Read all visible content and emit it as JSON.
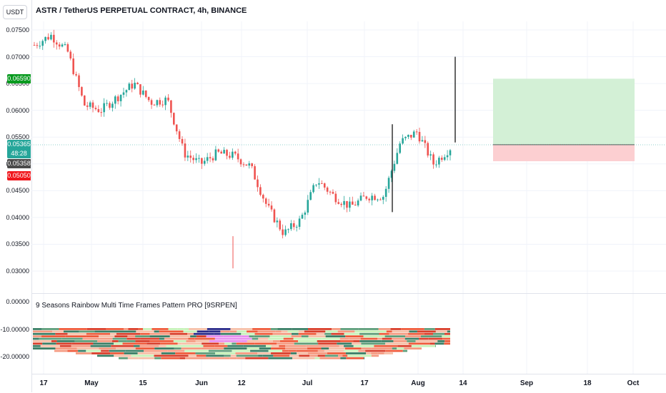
{
  "header": {
    "currency": "USDT",
    "title": "ASTR / TetherUS PERPETUAL CONTRACT, 4h, BINANCE"
  },
  "price_axis": {
    "ticks": [
      "0.07500",
      "0.07000",
      "0.06500",
      "0.06000",
      "0.05500",
      "0.05000",
      "0.04500",
      "0.04000",
      "0.03500",
      "0.03000"
    ],
    "labels": {
      "take_profit": "0.06590",
      "current": "0.05365",
      "countdown": "48:28",
      "entry": "0.05358",
      "stop_loss": "0.05050"
    },
    "colors": {
      "take_profit": "#089a1f",
      "current": "#26a69a",
      "entry": "#4a4a4a",
      "stop_loss": "#f0171d"
    }
  },
  "indicator": {
    "title": "9 Seasons Rainbow Multi Time Frames Pattern PRO [9SRPEN]",
    "ticks": [
      "0.00000",
      "-10.00000",
      "-20.00000"
    ]
  },
  "time_axis": {
    "ticks": [
      "17",
      "May",
      "15",
      "Jun",
      "12",
      "Jul",
      "17",
      "Aug",
      "14",
      "Sep",
      "18",
      "Oct"
    ]
  },
  "chart_data": {
    "type": "candlestick",
    "title": "ASTR / TetherUS PERPETUAL CONTRACT, 4h, BINANCE",
    "ylim": [
      0.0285,
      0.0775
    ],
    "grid": true,
    "approx_close_path": [
      {
        "x": "Apr 17",
        "y": 0.0722
      },
      {
        "x": "Apr 20",
        "y": 0.074
      },
      {
        "x": "Apr 24",
        "y": 0.071
      },
      {
        "x": "Apr 27",
        "y": 0.061
      },
      {
        "x": "May 1",
        "y": 0.06
      },
      {
        "x": "May 5",
        "y": 0.0625
      },
      {
        "x": "May 8",
        "y": 0.065
      },
      {
        "x": "May 12",
        "y": 0.0615
      },
      {
        "x": "May 16",
        "y": 0.062
      },
      {
        "x": "May 20",
        "y": 0.052
      },
      {
        "x": "May 24",
        "y": 0.05
      },
      {
        "x": "Jun 1",
        "y": 0.052
      },
      {
        "x": "Jun 6",
        "y": 0.0515
      },
      {
        "x": "Jun 10",
        "y": 0.0495
      },
      {
        "x": "Jun 12",
        "y": 0.042
      },
      {
        "x": "Jun 14",
        "y": 0.037
      },
      {
        "x": "Jun 20",
        "y": 0.0395
      },
      {
        "x": "Jun 26",
        "y": 0.047
      },
      {
        "x": "Jul 3",
        "y": 0.044
      },
      {
        "x": "Jul 10",
        "y": 0.042
      },
      {
        "x": "Jul 17",
        "y": 0.044
      },
      {
        "x": "Jul 25",
        "y": 0.044
      },
      {
        "x": "Jul 29",
        "y": 0.054
      },
      {
        "x": "Aug 2",
        "y": 0.056
      },
      {
        "x": "Aug 6",
        "y": 0.05
      },
      {
        "x": "Aug 10",
        "y": 0.053
      }
    ],
    "position": {
      "entry": 0.05358,
      "take_profit": 0.0659,
      "stop_loss": 0.0505
    }
  }
}
